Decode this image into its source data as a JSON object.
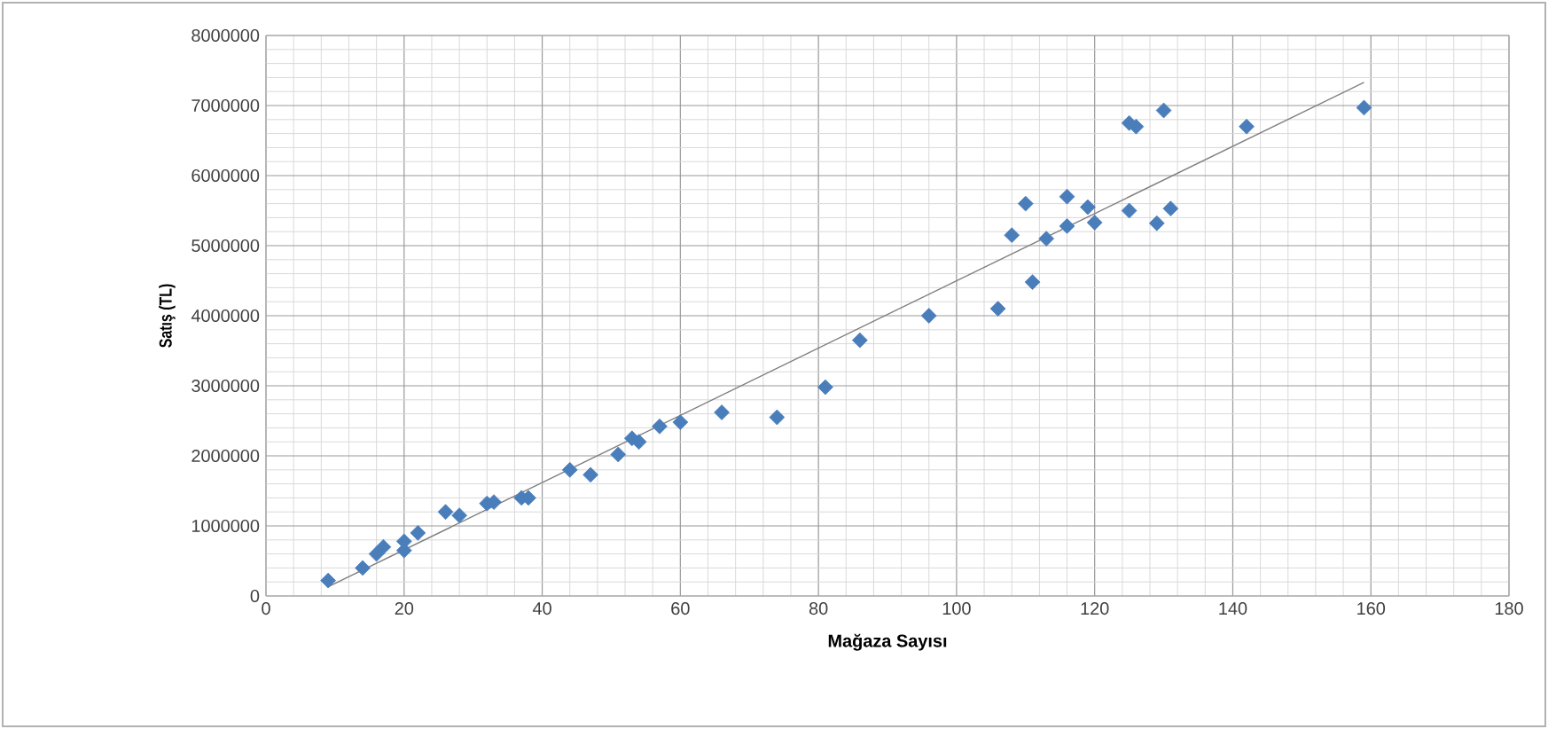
{
  "chart_data": {
    "type": "scatter",
    "xlabel": "Mağaza Sayısı",
    "ylabel": "Satış (TL)",
    "xlim": [
      0,
      180
    ],
    "xticks": [
      0,
      20,
      40,
      60,
      80,
      100,
      120,
      140,
      160,
      180
    ],
    "ylim": [
      0,
      8000000
    ],
    "yticks": [
      0,
      1000000,
      2000000,
      3000000,
      4000000,
      5000000,
      6000000,
      7000000,
      8000000
    ],
    "grid": true,
    "series": [
      {
        "marker": "diamond",
        "color": "#4a7ebb",
        "x": [
          9,
          14,
          16,
          17,
          20,
          20,
          22,
          26,
          28,
          32,
          33,
          37,
          38,
          44,
          47,
          51,
          53,
          54,
          57,
          60,
          66,
          74,
          81,
          86,
          96,
          106,
          108,
          110,
          111,
          113,
          116,
          116,
          119,
          120,
          125,
          125,
          126,
          129,
          130,
          131,
          142,
          159
        ],
        "values": [
          220000,
          400000,
          600000,
          700000,
          650000,
          780000,
          900000,
          1200000,
          1150000,
          1320000,
          1340000,
          1400000,
          1400000,
          1800000,
          1730000,
          2020000,
          2250000,
          2200000,
          2420000,
          2480000,
          2620000,
          2550000,
          2980000,
          3650000,
          4000000,
          4100000,
          5150000,
          5600000,
          4480000,
          5100000,
          5700000,
          5280000,
          5550000,
          5330000,
          6750000,
          5500000,
          6700000,
          5320000,
          6930000,
          5530000,
          6700000,
          6970000
        ]
      },
      {
        "type": "line",
        "marker": "none",
        "color": "#7f7f7f",
        "x": [
          9,
          159
        ],
        "values": [
          130000,
          7330000
        ]
      }
    ]
  }
}
